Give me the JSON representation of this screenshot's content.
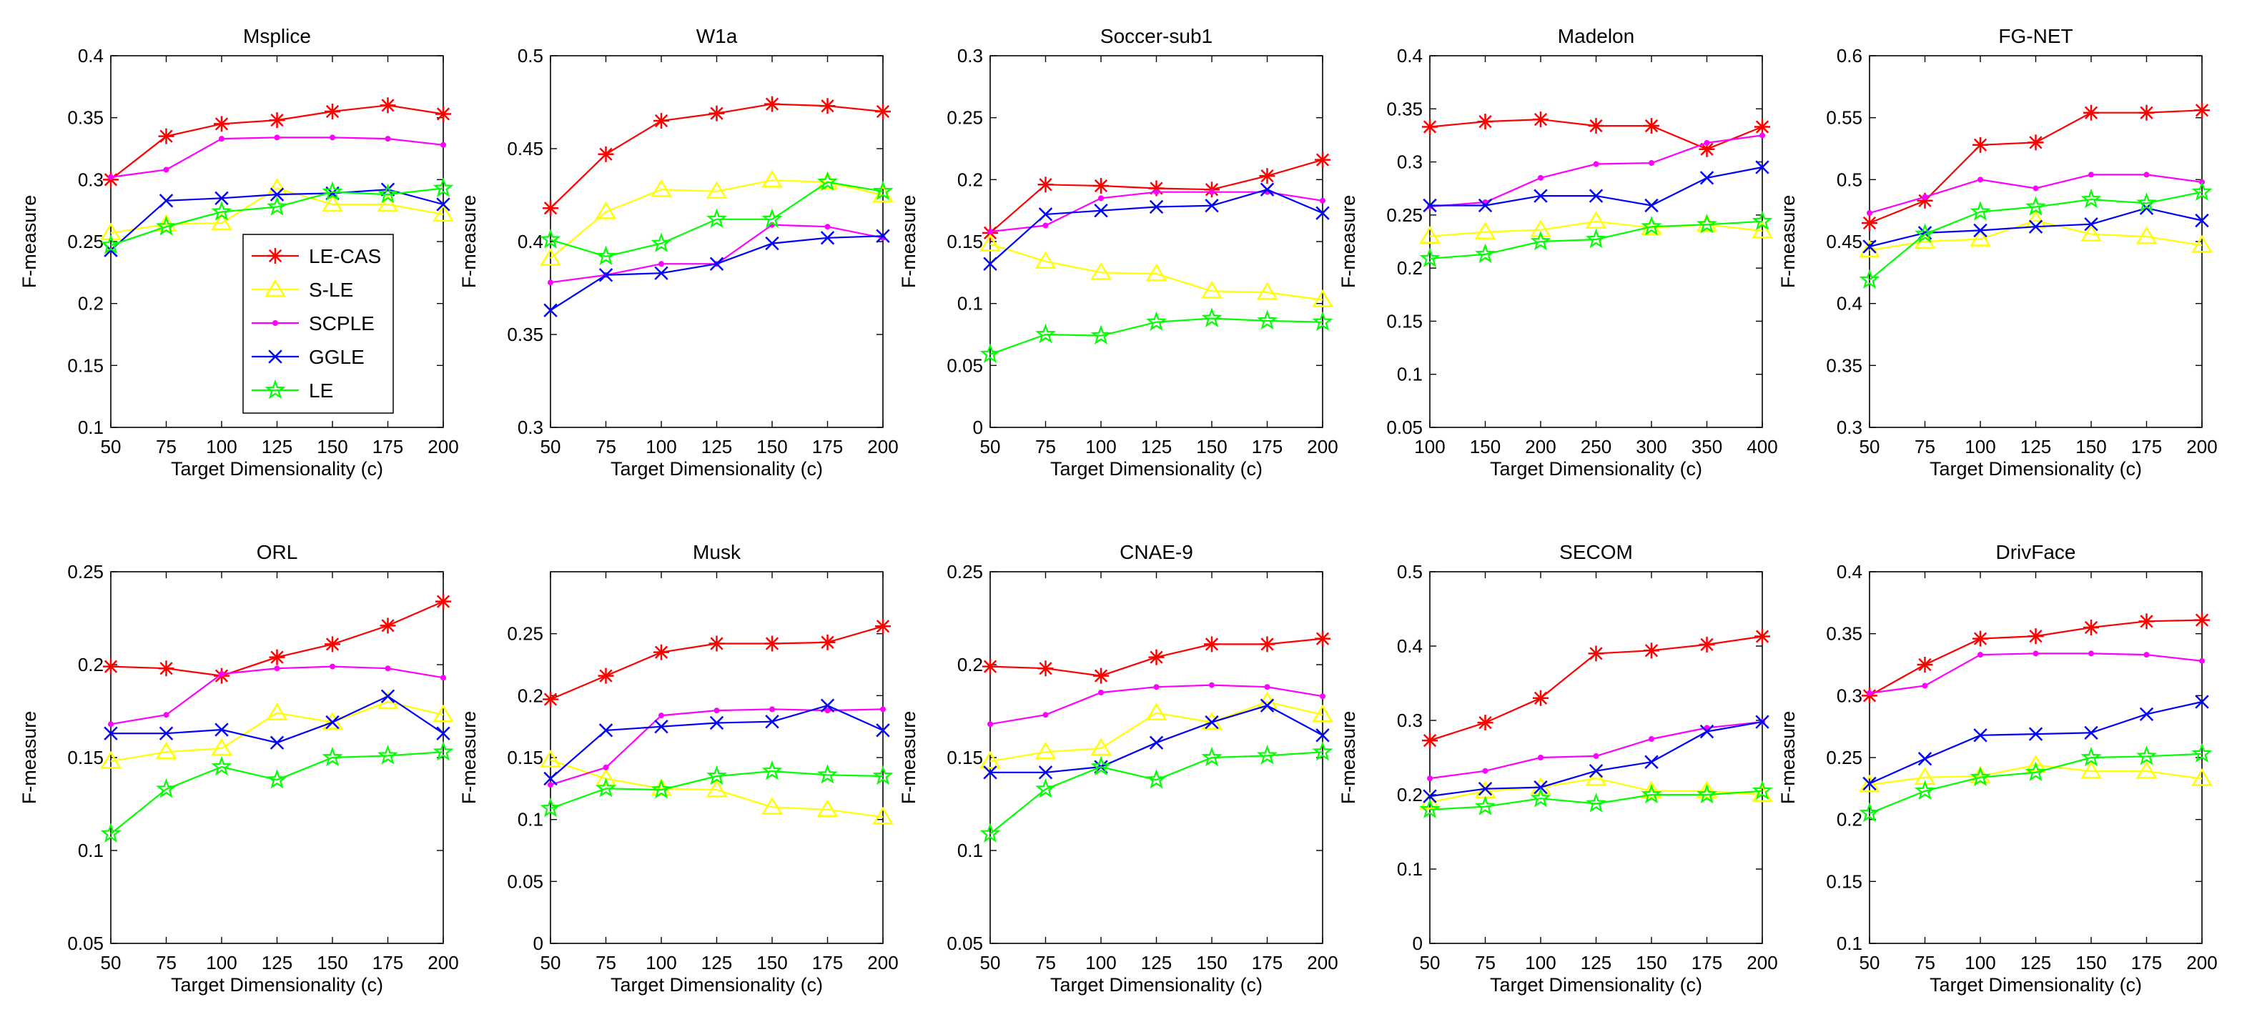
{
  "figure": {
    "type": "line-chart-grid"
  },
  "legend": {
    "entries": [
      {
        "name": "LE-CAS",
        "color": "#ff0000",
        "marker": "asterisk"
      },
      {
        "name": "S-LE",
        "color": "#ffff00",
        "marker": "triangle"
      },
      {
        "name": "SCPLE",
        "color": "#ff00ff",
        "marker": "dot"
      },
      {
        "name": "GGLE",
        "color": "#0000ff",
        "marker": "x"
      },
      {
        "name": "LE",
        "color": "#00ff00",
        "marker": "star"
      }
    ]
  },
  "chart_data": [
    {
      "type": "line",
      "title": "Msplice",
      "xlabel": "Target Dimensionality (c)",
      "ylabel": "F-measure",
      "x": [
        50,
        75,
        100,
        125,
        150,
        175,
        200
      ],
      "xlim": [
        50,
        200
      ],
      "ylim": [
        0.1,
        0.4
      ],
      "xticks": [
        "50",
        "75",
        "100",
        "125",
        "150",
        "175",
        "200"
      ],
      "yticks": [
        "0.1",
        "0.15",
        "0.2",
        "0.25",
        "0.3",
        "0.35",
        "0.4"
      ],
      "series": [
        {
          "name": "LE-CAS",
          "values": [
            0.3,
            0.335,
            0.345,
            0.348,
            0.355,
            0.36,
            0.353
          ]
        },
        {
          "name": "S-LE",
          "values": [
            0.257,
            0.264,
            0.265,
            0.293,
            0.28,
            0.28,
            0.272
          ]
        },
        {
          "name": "SCPLE",
          "values": [
            0.302,
            0.308,
            0.333,
            0.334,
            0.334,
            0.333,
            0.328
          ]
        },
        {
          "name": "GGLE",
          "values": [
            0.243,
            0.283,
            0.285,
            0.288,
            0.289,
            0.292,
            0.28
          ]
        },
        {
          "name": "LE",
          "values": [
            0.247,
            0.262,
            0.274,
            0.278,
            0.29,
            0.288,
            0.293
          ]
        }
      ]
    },
    {
      "type": "line",
      "title": "W1a",
      "xlabel": "Target Dimensionality (c)",
      "ylabel": "F-measure",
      "x": [
        50,
        75,
        100,
        125,
        150,
        175,
        200
      ],
      "xlim": [
        50,
        200
      ],
      "ylim": [
        0.3,
        0.5
      ],
      "xticks": [
        "50",
        "75",
        "100",
        "125",
        "150",
        "175",
        "200"
      ],
      "yticks": [
        "0.3",
        "0.35",
        "0.4",
        "0.45",
        "0.5"
      ],
      "series": [
        {
          "name": "LE-CAS",
          "values": [
            0.418,
            0.447,
            0.465,
            0.469,
            0.474,
            0.473,
            0.47
          ]
        },
        {
          "name": "S-LE",
          "values": [
            0.391,
            0.416,
            0.428,
            0.427,
            0.433,
            0.432,
            0.425
          ]
        },
        {
          "name": "SCPLE",
          "values": [
            0.378,
            0.382,
            0.388,
            0.388,
            0.409,
            0.408,
            0.402
          ]
        },
        {
          "name": "GGLE",
          "values": [
            0.363,
            0.382,
            0.383,
            0.388,
            0.399,
            0.402,
            0.403
          ]
        },
        {
          "name": "LE",
          "values": [
            0.401,
            0.392,
            0.399,
            0.412,
            0.412,
            0.432,
            0.427
          ]
        }
      ]
    },
    {
      "type": "line",
      "title": "Soccer-sub1",
      "xlabel": "Target Dimensionality (c)",
      "ylabel": "F-measure",
      "x": [
        50,
        75,
        100,
        125,
        150,
        175,
        200
      ],
      "xlim": [
        50,
        200
      ],
      "ylim": [
        0,
        0.3
      ],
      "xticks": [
        "50",
        "75",
        "100",
        "125",
        "150",
        "175",
        "200"
      ],
      "yticks": [
        "0",
        "0.05",
        "0.1",
        "0.15",
        "0.2",
        "0.25",
        "0.3"
      ],
      "series": [
        {
          "name": "LE-CAS",
          "values": [
            0.157,
            0.196,
            0.195,
            0.193,
            0.192,
            0.203,
            0.216
          ]
        },
        {
          "name": "S-LE",
          "values": [
            0.148,
            0.134,
            0.125,
            0.124,
            0.11,
            0.109,
            0.103
          ]
        },
        {
          "name": "SCPLE",
          "values": [
            0.158,
            0.163,
            0.185,
            0.19,
            0.19,
            0.19,
            0.183
          ]
        },
        {
          "name": "GGLE",
          "values": [
            0.132,
            0.172,
            0.175,
            0.178,
            0.179,
            0.192,
            0.173
          ]
        },
        {
          "name": "LE",
          "values": [
            0.059,
            0.075,
            0.074,
            0.085,
            0.088,
            0.086,
            0.085
          ]
        }
      ]
    },
    {
      "type": "line",
      "title": "Madelon",
      "xlabel": "Target Dimensionality (c)",
      "ylabel": "F-measure",
      "x": [
        100,
        150,
        200,
        250,
        300,
        350,
        400
      ],
      "xlim": [
        100,
        400
      ],
      "ylim": [
        0.05,
        0.4
      ],
      "xticks": [
        "100",
        "150",
        "200",
        "250",
        "300",
        "350",
        "400"
      ],
      "yticks": [
        "0.05",
        "0.1",
        "0.15",
        "0.2",
        "0.25",
        "0.3",
        "0.35",
        "0.4"
      ],
      "series": [
        {
          "name": "LE-CAS",
          "values": [
            0.333,
            0.338,
            0.34,
            0.334,
            0.334,
            0.312,
            0.333
          ]
        },
        {
          "name": "S-LE",
          "values": [
            0.23,
            0.234,
            0.236,
            0.244,
            0.238,
            0.241,
            0.235
          ]
        },
        {
          "name": "SCPLE",
          "values": [
            0.258,
            0.262,
            0.285,
            0.298,
            0.299,
            0.318,
            0.325
          ]
        },
        {
          "name": "GGLE",
          "values": [
            0.259,
            0.259,
            0.268,
            0.268,
            0.259,
            0.285,
            0.295
          ]
        },
        {
          "name": "LE",
          "values": [
            0.209,
            0.213,
            0.225,
            0.227,
            0.239,
            0.241,
            0.244
          ]
        }
      ]
    },
    {
      "type": "line",
      "title": "FG-NET",
      "xlabel": "Target Dimensionality (c)",
      "ylabel": "F-measure",
      "x": [
        50,
        75,
        100,
        125,
        150,
        175,
        200
      ],
      "xlim": [
        50,
        200
      ],
      "ylim": [
        0.3,
        0.6
      ],
      "xticks": [
        "50",
        "75",
        "100",
        "125",
        "150",
        "175",
        "200"
      ],
      "yticks": [
        "0.3",
        "0.35",
        "0.4",
        "0.45",
        "0.5",
        "0.55",
        "0.6"
      ],
      "series": [
        {
          "name": "LE-CAS",
          "values": [
            0.465,
            0.483,
            0.528,
            0.53,
            0.554,
            0.554,
            0.556
          ]
        },
        {
          "name": "S-LE",
          "values": [
            0.443,
            0.45,
            0.452,
            0.467,
            0.456,
            0.454,
            0.447
          ]
        },
        {
          "name": "SCPLE",
          "values": [
            0.473,
            0.486,
            0.5,
            0.493,
            0.504,
            0.504,
            0.498
          ]
        },
        {
          "name": "GGLE",
          "values": [
            0.446,
            0.457,
            0.459,
            0.462,
            0.464,
            0.477,
            0.467
          ]
        },
        {
          "name": "LE",
          "values": [
            0.419,
            0.456,
            0.474,
            0.478,
            0.484,
            0.481,
            0.49
          ]
        }
      ]
    },
    {
      "type": "line",
      "title": "ORL",
      "xlabel": "Target Dimensionality (c)",
      "ylabel": "F-measure",
      "x": [
        50,
        75,
        100,
        125,
        150,
        175,
        200
      ],
      "xlim": [
        50,
        200
      ],
      "ylim": [
        0.05,
        0.25
      ],
      "xticks": [
        "50",
        "75",
        "100",
        "125",
        "150",
        "175",
        "200"
      ],
      "yticks": [
        "0.05",
        "0.1",
        "0.15",
        "0.2",
        "0.25"
      ],
      "series": [
        {
          "name": "LE-CAS",
          "values": [
            0.199,
            0.198,
            0.194,
            0.204,
            0.211,
            0.221,
            0.234
          ]
        },
        {
          "name": "S-LE",
          "values": [
            0.148,
            0.153,
            0.155,
            0.174,
            0.169,
            0.18,
            0.173
          ]
        },
        {
          "name": "SCPLE",
          "values": [
            0.168,
            0.173,
            0.195,
            0.198,
            0.199,
            0.198,
            0.193
          ]
        },
        {
          "name": "GGLE",
          "values": [
            0.163,
            0.163,
            0.165,
            0.158,
            0.169,
            0.183,
            0.163
          ]
        },
        {
          "name": "LE",
          "values": [
            0.109,
            0.133,
            0.145,
            0.138,
            0.15,
            0.151,
            0.153
          ]
        }
      ]
    },
    {
      "type": "line",
      "title": "Musk",
      "xlabel": "Target Dimensionality (c)",
      "ylabel": "F-measure",
      "x": [
        50,
        75,
        100,
        125,
        150,
        175,
        200
      ],
      "xlim": [
        50,
        200
      ],
      "ylim": [
        0,
        0.3
      ],
      "xticks": [
        "50",
        "75",
        "100",
        "125",
        "150",
        "175",
        "200"
      ],
      "yticks": [
        "0",
        "0.05",
        "0.1",
        "0.15",
        "0.2",
        "0.25"
      ],
      "series": [
        {
          "name": "LE-CAS",
          "values": [
            0.197,
            0.216,
            0.235,
            0.242,
            0.242,
            0.243,
            0.256
          ]
        },
        {
          "name": "S-LE",
          "values": [
            0.148,
            0.133,
            0.125,
            0.124,
            0.11,
            0.108,
            0.102
          ]
        },
        {
          "name": "SCPLE",
          "values": [
            0.128,
            0.142,
            0.184,
            0.188,
            0.189,
            0.188,
            0.189
          ]
        },
        {
          "name": "GGLE",
          "values": [
            0.133,
            0.172,
            0.175,
            0.178,
            0.179,
            0.192,
            0.172
          ]
        },
        {
          "name": "LE",
          "values": [
            0.109,
            0.125,
            0.124,
            0.135,
            0.139,
            0.136,
            0.135
          ]
        }
      ]
    },
    {
      "type": "line",
      "title": "CNAE-9",
      "xlabel": "Target Dimensionality (c)",
      "ylabel": "F-measure",
      "x": [
        50,
        75,
        100,
        125,
        150,
        175,
        200
      ],
      "xlim": [
        50,
        200
      ],
      "ylim": [
        0.05,
        0.25
      ],
      "xticks": [
        "50",
        "75",
        "100",
        "125",
        "150",
        "175",
        "200"
      ],
      "yticks": [
        "0.05",
        "0.1",
        "0.15",
        "0.2",
        "0.25"
      ],
      "series": [
        {
          "name": "LE-CAS",
          "values": [
            0.199,
            0.198,
            0.194,
            0.204,
            0.211,
            0.211,
            0.214
          ]
        },
        {
          "name": "S-LE",
          "values": [
            0.148,
            0.153,
            0.155,
            0.174,
            0.169,
            0.18,
            0.173
          ]
        },
        {
          "name": "SCPLE",
          "values": [
            0.168,
            0.173,
            0.185,
            0.188,
            0.189,
            0.188,
            0.183
          ]
        },
        {
          "name": "GGLE",
          "values": [
            0.142,
            0.142,
            0.145,
            0.158,
            0.169,
            0.178,
            0.162
          ]
        },
        {
          "name": "LE",
          "values": [
            0.109,
            0.133,
            0.145,
            0.138,
            0.15,
            0.151,
            0.153
          ]
        }
      ]
    },
    {
      "type": "line",
      "title": "SECOM",
      "xlabel": "Target Dimensionality (c)",
      "ylabel": "F-measure",
      "x": [
        50,
        75,
        100,
        125,
        150,
        175,
        200
      ],
      "xlim": [
        50,
        200
      ],
      "ylim": [
        0,
        0.5
      ],
      "xticks": [
        "50",
        "75",
        "100",
        "125",
        "150",
        "175",
        "200"
      ],
      "yticks": [
        "0",
        "0.1",
        "0.2",
        "0.3",
        "0.4",
        "0.5"
      ],
      "series": [
        {
          "name": "LE-CAS",
          "values": [
            0.273,
            0.297,
            0.33,
            0.39,
            0.394,
            0.402,
            0.413
          ]
        },
        {
          "name": "S-LE",
          "values": [
            0.19,
            0.205,
            0.21,
            0.222,
            0.205,
            0.205,
            0.2
          ]
        },
        {
          "name": "SCPLE",
          "values": [
            0.222,
            0.232,
            0.25,
            0.252,
            0.275,
            0.29,
            0.298
          ]
        },
        {
          "name": "GGLE",
          "values": [
            0.198,
            0.208,
            0.21,
            0.232,
            0.244,
            0.285,
            0.298
          ]
        },
        {
          "name": "LE",
          "values": [
            0.18,
            0.184,
            0.195,
            0.188,
            0.2,
            0.2,
            0.205
          ]
        }
      ]
    },
    {
      "type": "line",
      "title": "DrivFace",
      "xlabel": "Target Dimensionality (c)",
      "ylabel": "F-measure",
      "x": [
        50,
        75,
        100,
        125,
        150,
        175,
        200
      ],
      "xlim": [
        50,
        200
      ],
      "ylim": [
        0.1,
        0.4
      ],
      "xticks": [
        "50",
        "75",
        "100",
        "125",
        "150",
        "175",
        "200"
      ],
      "yticks": [
        "0.1",
        "0.15",
        "0.2",
        "0.25",
        "0.3",
        "0.35",
        "0.4"
      ],
      "series": [
        {
          "name": "LE-CAS",
          "values": [
            0.3,
            0.325,
            0.346,
            0.348,
            0.355,
            0.36,
            0.361
          ]
        },
        {
          "name": "S-LE",
          "values": [
            0.228,
            0.234,
            0.235,
            0.244,
            0.239,
            0.239,
            0.233
          ]
        },
        {
          "name": "SCPLE",
          "values": [
            0.302,
            0.308,
            0.333,
            0.334,
            0.334,
            0.333,
            0.328
          ]
        },
        {
          "name": "GGLE",
          "values": [
            0.229,
            0.249,
            0.268,
            0.269,
            0.27,
            0.285,
            0.295
          ]
        },
        {
          "name": "LE",
          "values": [
            0.205,
            0.223,
            0.234,
            0.238,
            0.25,
            0.251,
            0.253
          ]
        }
      ]
    }
  ]
}
